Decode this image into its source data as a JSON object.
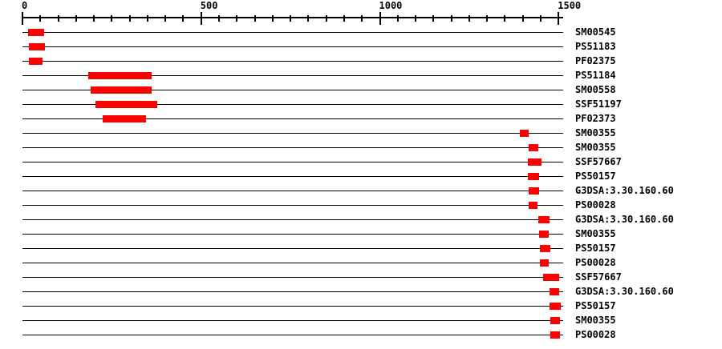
{
  "colors": {
    "background": "#ffffff",
    "feature": "#ff0000",
    "line": "#000000",
    "text": "#000000"
  },
  "axis": {
    "min": 0,
    "max": 1500,
    "major_ticks": [
      0,
      500,
      1000,
      1500
    ],
    "major_tick_labels": [
      "0",
      "500",
      "1000",
      "1500"
    ],
    "minor_tick_step": 50
  },
  "sequence": {
    "display_length": 1513
  },
  "chart_data": {
    "type": "bar",
    "subtype": "horizontal-interval-domain-plot",
    "title": "",
    "xlim": [
      0,
      1513
    ],
    "grid": false,
    "legend": false,
    "rows": [
      {
        "label": "SM00545",
        "start": 16,
        "end": 61
      },
      {
        "label": "PS51183",
        "start": 18,
        "end": 63
      },
      {
        "label": "PF02375",
        "start": 18,
        "end": 56
      },
      {
        "label": "PS51184",
        "start": 184,
        "end": 361
      },
      {
        "label": "SM00558",
        "start": 191,
        "end": 361
      },
      {
        "label": "SSF51197",
        "start": 204,
        "end": 377
      },
      {
        "label": "PF02373",
        "start": 224,
        "end": 346
      },
      {
        "label": "SM00355",
        "start": 1392,
        "end": 1417
      },
      {
        "label": "SM00355",
        "start": 1417,
        "end": 1444
      },
      {
        "label": "SSF57667",
        "start": 1415,
        "end": 1453
      },
      {
        "label": "PS50157",
        "start": 1415,
        "end": 1446
      },
      {
        "label": "G3DSA:3.30.160.60",
        "start": 1417,
        "end": 1446
      },
      {
        "label": "PS00028",
        "start": 1417,
        "end": 1442
      },
      {
        "label": "G3DSA:3.30.160.60",
        "start": 1444,
        "end": 1475
      },
      {
        "label": "SM00355",
        "start": 1446,
        "end": 1473
      },
      {
        "label": "PS50157",
        "start": 1448,
        "end": 1477
      },
      {
        "label": "PS00028",
        "start": 1448,
        "end": 1473
      },
      {
        "label": "SSF57667",
        "start": 1457,
        "end": 1502
      },
      {
        "label": "G3DSA:3.30.160.60",
        "start": 1475,
        "end": 1502
      },
      {
        "label": "PS50157",
        "start": 1475,
        "end": 1507
      },
      {
        "label": "SM00355",
        "start": 1477,
        "end": 1504
      },
      {
        "label": "PS00028",
        "start": 1477,
        "end": 1504
      }
    ]
  }
}
